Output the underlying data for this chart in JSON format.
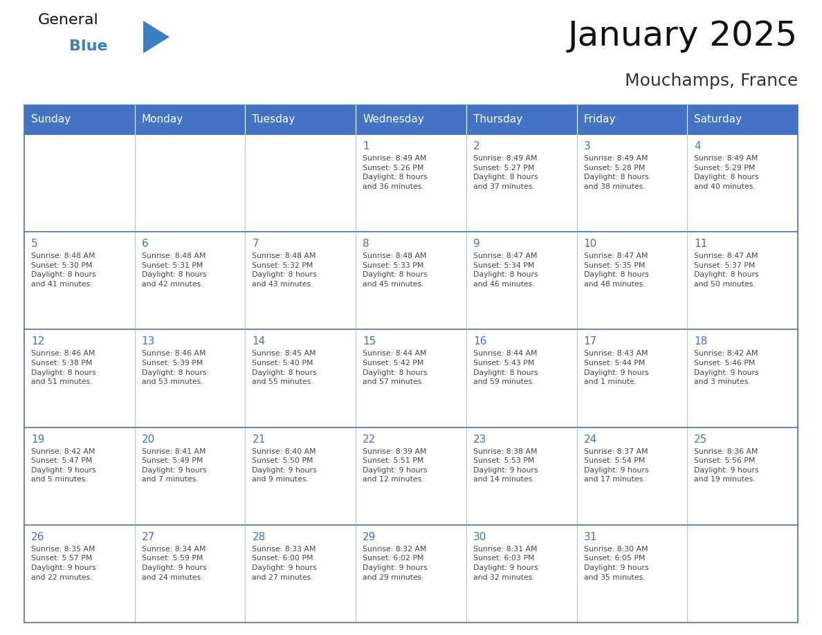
{
  "title": "January 2025",
  "subtitle": "Mouchamps, France",
  "days_of_week": [
    "Sunday",
    "Monday",
    "Tuesday",
    "Wednesday",
    "Thursday",
    "Friday",
    "Saturday"
  ],
  "header_bg": "#4472C4",
  "header_text": "#FFFFFF",
  "cell_bg": "#FFFFFF",
  "border_color": "#4472C4",
  "border_color_light": "#9DB8E0",
  "day_number_color": "#4472C4",
  "text_color": "#444444",
  "logo_general_color": "#111111",
  "logo_blue_color": "#3A7FC1",
  "logo_triangle_color": "#3A7FC1",
  "weeks": [
    [
      {
        "day": null,
        "info": null
      },
      {
        "day": null,
        "info": null
      },
      {
        "day": null,
        "info": null
      },
      {
        "day": 1,
        "info": "Sunrise: 8:49 AM\nSunset: 5:26 PM\nDaylight: 8 hours\nand 36 minutes."
      },
      {
        "day": 2,
        "info": "Sunrise: 8:49 AM\nSunset: 5:27 PM\nDaylight: 8 hours\nand 37 minutes."
      },
      {
        "day": 3,
        "info": "Sunrise: 8:49 AM\nSunset: 5:28 PM\nDaylight: 8 hours\nand 38 minutes."
      },
      {
        "day": 4,
        "info": "Sunrise: 8:49 AM\nSunset: 5:29 PM\nDaylight: 8 hours\nand 40 minutes."
      }
    ],
    [
      {
        "day": 5,
        "info": "Sunrise: 8:48 AM\nSunset: 5:30 PM\nDaylight: 8 hours\nand 41 minutes."
      },
      {
        "day": 6,
        "info": "Sunrise: 8:48 AM\nSunset: 5:31 PM\nDaylight: 8 hours\nand 42 minutes."
      },
      {
        "day": 7,
        "info": "Sunrise: 8:48 AM\nSunset: 5:32 PM\nDaylight: 8 hours\nand 43 minutes."
      },
      {
        "day": 8,
        "info": "Sunrise: 8:48 AM\nSunset: 5:33 PM\nDaylight: 8 hours\nand 45 minutes."
      },
      {
        "day": 9,
        "info": "Sunrise: 8:47 AM\nSunset: 5:34 PM\nDaylight: 8 hours\nand 46 minutes."
      },
      {
        "day": 10,
        "info": "Sunrise: 8:47 AM\nSunset: 5:35 PM\nDaylight: 8 hours\nand 48 minutes."
      },
      {
        "day": 11,
        "info": "Sunrise: 8:47 AM\nSunset: 5:37 PM\nDaylight: 8 hours\nand 50 minutes."
      }
    ],
    [
      {
        "day": 12,
        "info": "Sunrise: 8:46 AM\nSunset: 5:38 PM\nDaylight: 8 hours\nand 51 minutes."
      },
      {
        "day": 13,
        "info": "Sunrise: 8:46 AM\nSunset: 5:39 PM\nDaylight: 8 hours\nand 53 minutes."
      },
      {
        "day": 14,
        "info": "Sunrise: 8:45 AM\nSunset: 5:40 PM\nDaylight: 8 hours\nand 55 minutes."
      },
      {
        "day": 15,
        "info": "Sunrise: 8:44 AM\nSunset: 5:42 PM\nDaylight: 8 hours\nand 57 minutes."
      },
      {
        "day": 16,
        "info": "Sunrise: 8:44 AM\nSunset: 5:43 PM\nDaylight: 8 hours\nand 59 minutes."
      },
      {
        "day": 17,
        "info": "Sunrise: 8:43 AM\nSunset: 5:44 PM\nDaylight: 9 hours\nand 1 minute."
      },
      {
        "day": 18,
        "info": "Sunrise: 8:42 AM\nSunset: 5:46 PM\nDaylight: 9 hours\nand 3 minutes."
      }
    ],
    [
      {
        "day": 19,
        "info": "Sunrise: 8:42 AM\nSunset: 5:47 PM\nDaylight: 9 hours\nand 5 minutes."
      },
      {
        "day": 20,
        "info": "Sunrise: 8:41 AM\nSunset: 5:49 PM\nDaylight: 9 hours\nand 7 minutes."
      },
      {
        "day": 21,
        "info": "Sunrise: 8:40 AM\nSunset: 5:50 PM\nDaylight: 9 hours\nand 9 minutes."
      },
      {
        "day": 22,
        "info": "Sunrise: 8:39 AM\nSunset: 5:51 PM\nDaylight: 9 hours\nand 12 minutes."
      },
      {
        "day": 23,
        "info": "Sunrise: 8:38 AM\nSunset: 5:53 PM\nDaylight: 9 hours\nand 14 minutes."
      },
      {
        "day": 24,
        "info": "Sunrise: 8:37 AM\nSunset: 5:54 PM\nDaylight: 9 hours\nand 17 minutes."
      },
      {
        "day": 25,
        "info": "Sunrise: 8:36 AM\nSunset: 5:56 PM\nDaylight: 9 hours\nand 19 minutes."
      }
    ],
    [
      {
        "day": 26,
        "info": "Sunrise: 8:35 AM\nSunset: 5:57 PM\nDaylight: 9 hours\nand 22 minutes."
      },
      {
        "day": 27,
        "info": "Sunrise: 8:34 AM\nSunset: 5:59 PM\nDaylight: 9 hours\nand 24 minutes."
      },
      {
        "day": 28,
        "info": "Sunrise: 8:33 AM\nSunset: 6:00 PM\nDaylight: 9 hours\nand 27 minutes."
      },
      {
        "day": 29,
        "info": "Sunrise: 8:32 AM\nSunset: 6:02 PM\nDaylight: 9 hours\nand 29 minutes."
      },
      {
        "day": 30,
        "info": "Sunrise: 8:31 AM\nSunset: 6:03 PM\nDaylight: 9 hours\nand 32 minutes."
      },
      {
        "day": 31,
        "info": "Sunrise: 8:30 AM\nSunset: 6:05 PM\nDaylight: 9 hours\nand 35 minutes."
      },
      {
        "day": null,
        "info": null
      }
    ]
  ]
}
